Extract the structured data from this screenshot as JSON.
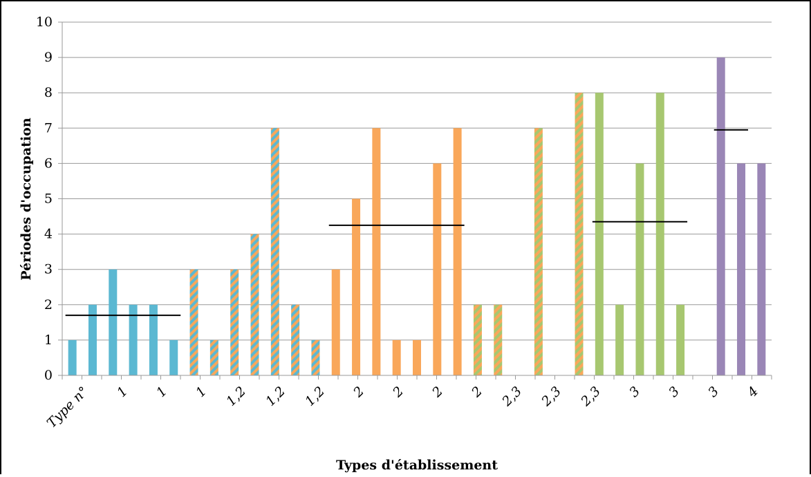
{
  "chart_data": {
    "type": "bar",
    "xlabel": "Types d'établissement",
    "ylabel": "Périodes d'occupation",
    "ylim": [
      0,
      10
    ],
    "grid": true,
    "y_ticks": [
      "0",
      "1",
      "2",
      "3",
      "4",
      "5",
      "6",
      "7",
      "8",
      "9",
      "10"
    ],
    "x_tick_labels": [
      "Type n°",
      "1",
      "1",
      "1",
      "1,2",
      "1,2",
      "1,2",
      "2",
      "2",
      "2",
      "2",
      "2,3",
      "2,3",
      "2,3",
      "3",
      "3",
      "3",
      "4"
    ],
    "colors": {
      "blue": "#5BB8D2",
      "orange": "#F9A75A",
      "green": "#A7C770",
      "purple": "#9A86B6",
      "grid": "#999999",
      "mean": "#000000"
    },
    "bars": [
      {
        "value": 1,
        "style": "blue"
      },
      {
        "value": 2,
        "style": "blue"
      },
      {
        "value": 3,
        "style": "blue"
      },
      {
        "value": 2,
        "style": "blue"
      },
      {
        "value": 2,
        "style": "blue"
      },
      {
        "value": 1,
        "style": "blue"
      },
      {
        "value": 3,
        "style": "orange-blue"
      },
      {
        "value": 1,
        "style": "orange-blue"
      },
      {
        "value": 3,
        "style": "orange-blue"
      },
      {
        "value": 4,
        "style": "orange-blue"
      },
      {
        "value": 7,
        "style": "orange-blue"
      },
      {
        "value": 2,
        "style": "orange-blue"
      },
      {
        "value": 1,
        "style": "orange-blue"
      },
      {
        "value": 3,
        "style": "orange"
      },
      {
        "value": 5,
        "style": "orange"
      },
      {
        "value": 7,
        "style": "orange"
      },
      {
        "value": 1,
        "style": "orange"
      },
      {
        "value": 1,
        "style": "orange"
      },
      {
        "value": 6,
        "style": "orange"
      },
      {
        "value": 7,
        "style": "orange"
      },
      {
        "value": 2,
        "style": "orange-green"
      },
      {
        "value": 2,
        "style": "orange-green"
      },
      {
        "value": 0,
        "style": "none"
      },
      {
        "value": 7,
        "style": "orange-green"
      },
      {
        "value": 0,
        "style": "none"
      },
      {
        "value": 8,
        "style": "orange-green"
      },
      {
        "value": 8,
        "style": "green"
      },
      {
        "value": 2,
        "style": "green"
      },
      {
        "value": 6,
        "style": "green"
      },
      {
        "value": 8,
        "style": "green"
      },
      {
        "value": 2,
        "style": "green"
      },
      {
        "value": 0,
        "style": "none"
      },
      {
        "value": 9,
        "style": "purple"
      },
      {
        "value": 6,
        "style": "purple"
      },
      {
        "value": 6,
        "style": "purple"
      }
    ],
    "mean_lines": [
      {
        "value": 1.7,
        "from_bar": 0,
        "to_bar": 5
      },
      {
        "value": 4.25,
        "from_bar": 13,
        "to_bar": 19
      },
      {
        "value": 4.35,
        "from_bar": 26,
        "to_bar": 30
      },
      {
        "value": 6.95,
        "from_bar": 32,
        "to_bar": 33
      }
    ]
  }
}
